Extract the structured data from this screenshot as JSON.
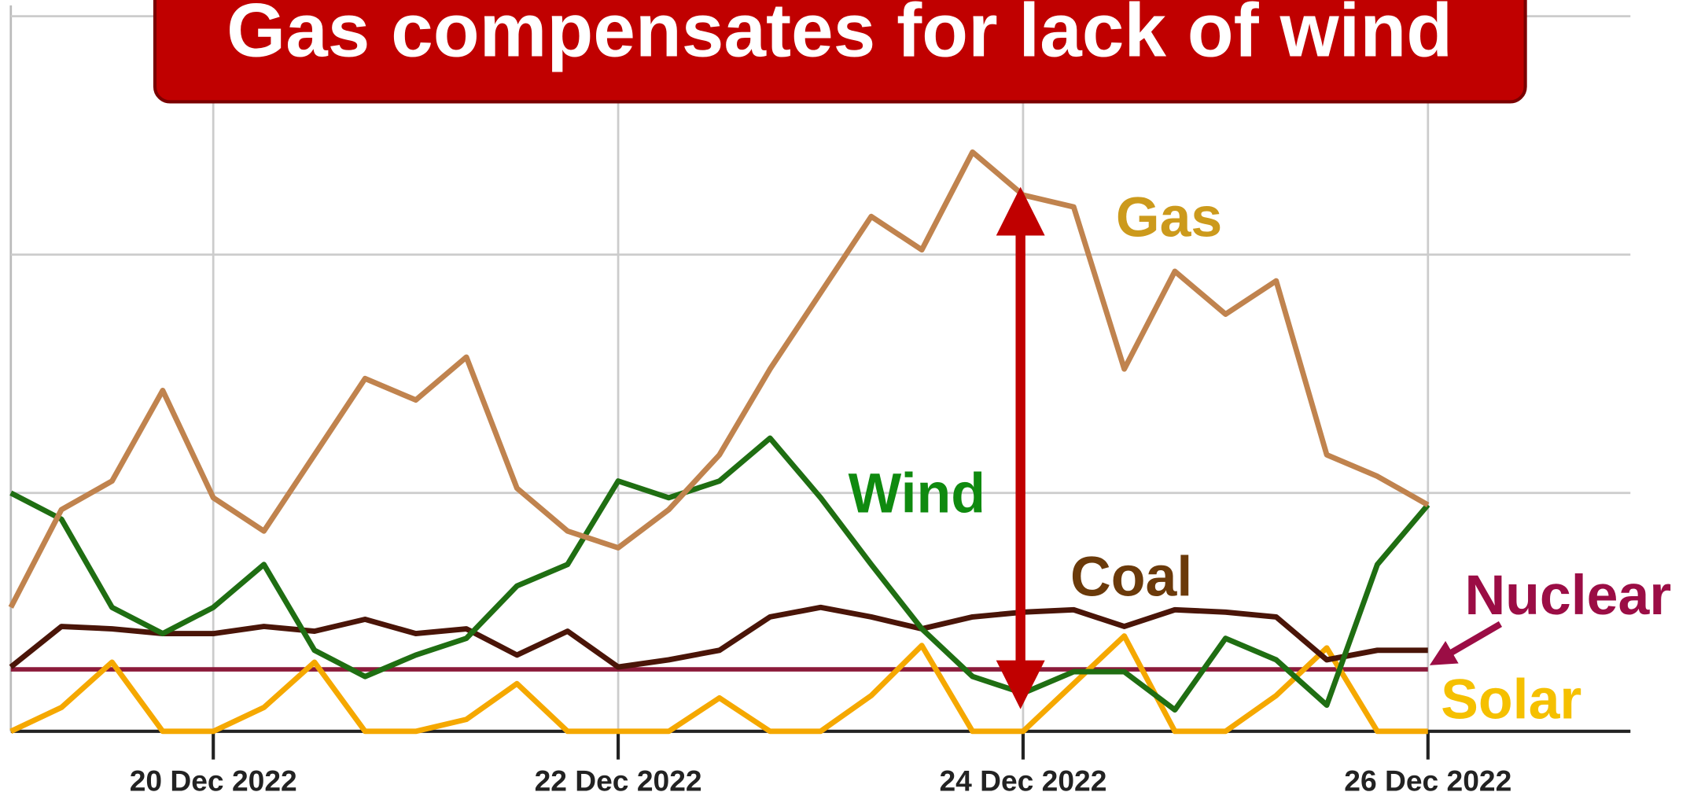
{
  "chart_data": {
    "type": "line",
    "title": "Gas compensates for lack of wind",
    "x": [
      19,
      19.25,
      19.5,
      19.75,
      20,
      20.25,
      20.5,
      20.75,
      21,
      21.25,
      21.5,
      21.75,
      22,
      22.25,
      22.5,
      22.75,
      23,
      23.25,
      23.5,
      23.75,
      24,
      24.25,
      24.5,
      24.75,
      25,
      25.25,
      25.5,
      25.75,
      26
    ],
    "xlim": [
      19,
      27
    ],
    "xticks": [
      {
        "value": 20,
        "label": "20 Dec 2022"
      },
      {
        "value": 22,
        "label": "22 Dec 2022"
      },
      {
        "value": 24,
        "label": "24 Dec 2022"
      },
      {
        "value": 26,
        "label": "26 Dec 2022"
      }
    ],
    "ylim": [
      0,
      3
    ],
    "yticks": [
      0,
      1,
      2,
      3
    ],
    "grid": true,
    "series": [
      {
        "name": "Gas",
        "color": "#c0834e",
        "label_color": "#cc9a1c",
        "values": [
          0.52,
          0.93,
          1.05,
          1.43,
          0.98,
          0.84,
          1.16,
          1.48,
          1.39,
          1.57,
          1.02,
          0.84,
          0.77,
          0.93,
          1.16,
          1.52,
          1.84,
          2.16,
          2.02,
          2.43,
          2.25,
          2.2,
          1.52,
          1.93,
          1.75,
          1.89,
          1.16,
          1.07,
          0.95
        ]
      },
      {
        "name": "Wind",
        "color": "#1f6e12",
        "label_color": "#0f8a0f",
        "values": [
          1.0,
          0.89,
          0.52,
          0.41,
          0.52,
          0.7,
          0.34,
          0.23,
          0.32,
          0.39,
          0.61,
          0.7,
          1.05,
          0.98,
          1.05,
          1.23,
          0.98,
          0.7,
          0.43,
          0.23,
          0.16,
          0.25,
          0.25,
          0.09,
          0.39,
          0.3,
          0.11,
          0.7,
          0.95
        ]
      },
      {
        "name": "Coal",
        "color": "#4a1508",
        "label_color": "#6b3a0a",
        "values": [
          0.27,
          0.44,
          0.43,
          0.41,
          0.41,
          0.44,
          0.42,
          0.47,
          0.41,
          0.43,
          0.32,
          0.42,
          0.27,
          0.3,
          0.34,
          0.48,
          0.52,
          0.48,
          0.43,
          0.48,
          0.5,
          0.51,
          0.44,
          0.51,
          0.5,
          0.48,
          0.3,
          0.34,
          0.34
        ]
      },
      {
        "name": "Nuclear",
        "color": "#8b1a3a",
        "label_color": "#9b0d45",
        "values": [
          0.26,
          0.26,
          0.26,
          0.26,
          0.26,
          0.26,
          0.26,
          0.26,
          0.26,
          0.26,
          0.26,
          0.26,
          0.26,
          0.26,
          0.26,
          0.26,
          0.26,
          0.26,
          0.26,
          0.26,
          0.26,
          0.26,
          0.26,
          0.26,
          0.26,
          0.26,
          0.26,
          0.26,
          0.26
        ]
      },
      {
        "name": "Solar",
        "color": "#f5a800",
        "label_color": "#f5c000",
        "values": [
          0,
          0.1,
          0.29,
          0,
          0,
          0.1,
          0.29,
          0,
          0,
          0.05,
          0.2,
          0,
          0,
          0,
          0.14,
          0,
          0,
          0.15,
          0.36,
          0,
          0,
          0.2,
          0.4,
          0,
          0,
          0.15,
          0.35,
          0,
          0
        ]
      }
    ]
  }
}
